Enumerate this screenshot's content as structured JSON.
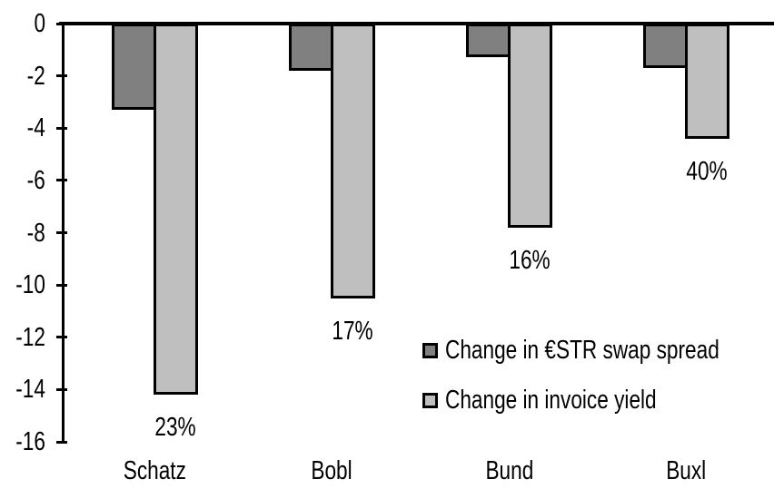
{
  "chart_data": {
    "type": "bar",
    "title": "",
    "xlabel": "",
    "ylabel": "",
    "categories": [
      "Schatz",
      "Bobl",
      "Bund",
      "Buxl"
    ],
    "series": [
      {
        "name": "Change in €STR swap spread",
        "color": "#808080",
        "values": [
          -3.3,
          -1.8,
          -1.3,
          -1.7
        ]
      },
      {
        "name": "Change in invoice yield",
        "color": "#BFBFBF",
        "values": [
          -14.2,
          -10.5,
          -7.8,
          -4.4
        ],
        "point_labels": [
          "23%",
          "17%",
          "16%",
          "40%"
        ]
      }
    ],
    "ylim": [
      -16,
      0
    ],
    "yticks": [
      "0",
      "-2",
      "-4",
      "-6",
      "-8",
      "-10",
      "-12",
      "-14",
      "-16"
    ],
    "grid": false,
    "legend_position": "inside-lower-right",
    "bar_outline_color": "#000000",
    "axis_color": "#000000",
    "background_color": "#FFFFFF",
    "text_color": "#000000"
  }
}
